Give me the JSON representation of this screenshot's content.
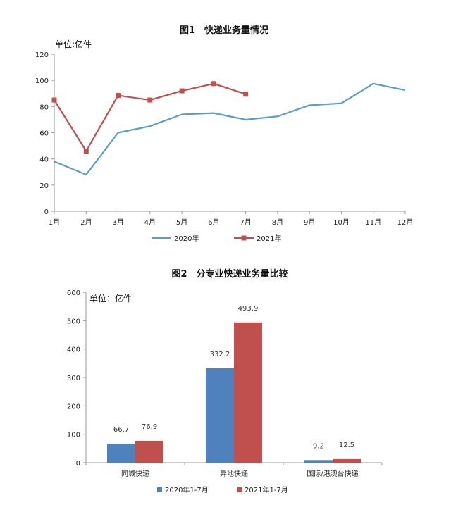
{
  "chart_data": [
    {
      "type": "line",
      "title": "图1　快递业务量情况",
      "unit_label": "单位:亿件",
      "x": [
        "1月",
        "2月",
        "3月",
        "4月",
        "5月",
        "6月",
        "7月",
        "8月",
        "9月",
        "10月",
        "11月",
        "12月"
      ],
      "ylim": [
        0,
        120
      ],
      "yticks": [
        0,
        20,
        40,
        60,
        80,
        100,
        120
      ],
      "series": [
        {
          "name": "2020年",
          "color": "#5b9bd5",
          "marker": "none",
          "values": [
            38,
            28,
            60,
            65,
            74,
            75,
            70,
            72.5,
            81,
            82.5,
            97.5,
            92.5
          ]
        },
        {
          "name": "2021年",
          "color": "#c0504d",
          "marker": "square",
          "values": [
            85,
            46,
            88.5,
            85,
            92,
            97.5,
            89.5,
            null,
            null,
            null,
            null,
            null
          ]
        }
      ],
      "legend_position": "bottom"
    },
    {
      "type": "bar",
      "title": "图2　分专业快递业务量比较",
      "unit_label": "单位：亿件",
      "categories": [
        "同城快递",
        "异地快递",
        "国际/港澳台快递"
      ],
      "ylim": [
        0,
        600
      ],
      "yticks": [
        0,
        100,
        200,
        300,
        400,
        500,
        600
      ],
      "series": [
        {
          "name": "2020年1-7月",
          "color": "#4f81bd",
          "values": [
            66.7,
            332.2,
            9.2
          ],
          "labels": [
            "66.7",
            "332.2",
            "9.2"
          ]
        },
        {
          "name": "2021年1-7月",
          "color": "#c0504d",
          "values": [
            76.9,
            493.9,
            12.5
          ],
          "labels": [
            "76.9",
            "493.9",
            "12.5"
          ]
        }
      ],
      "legend_position": "bottom"
    }
  ]
}
